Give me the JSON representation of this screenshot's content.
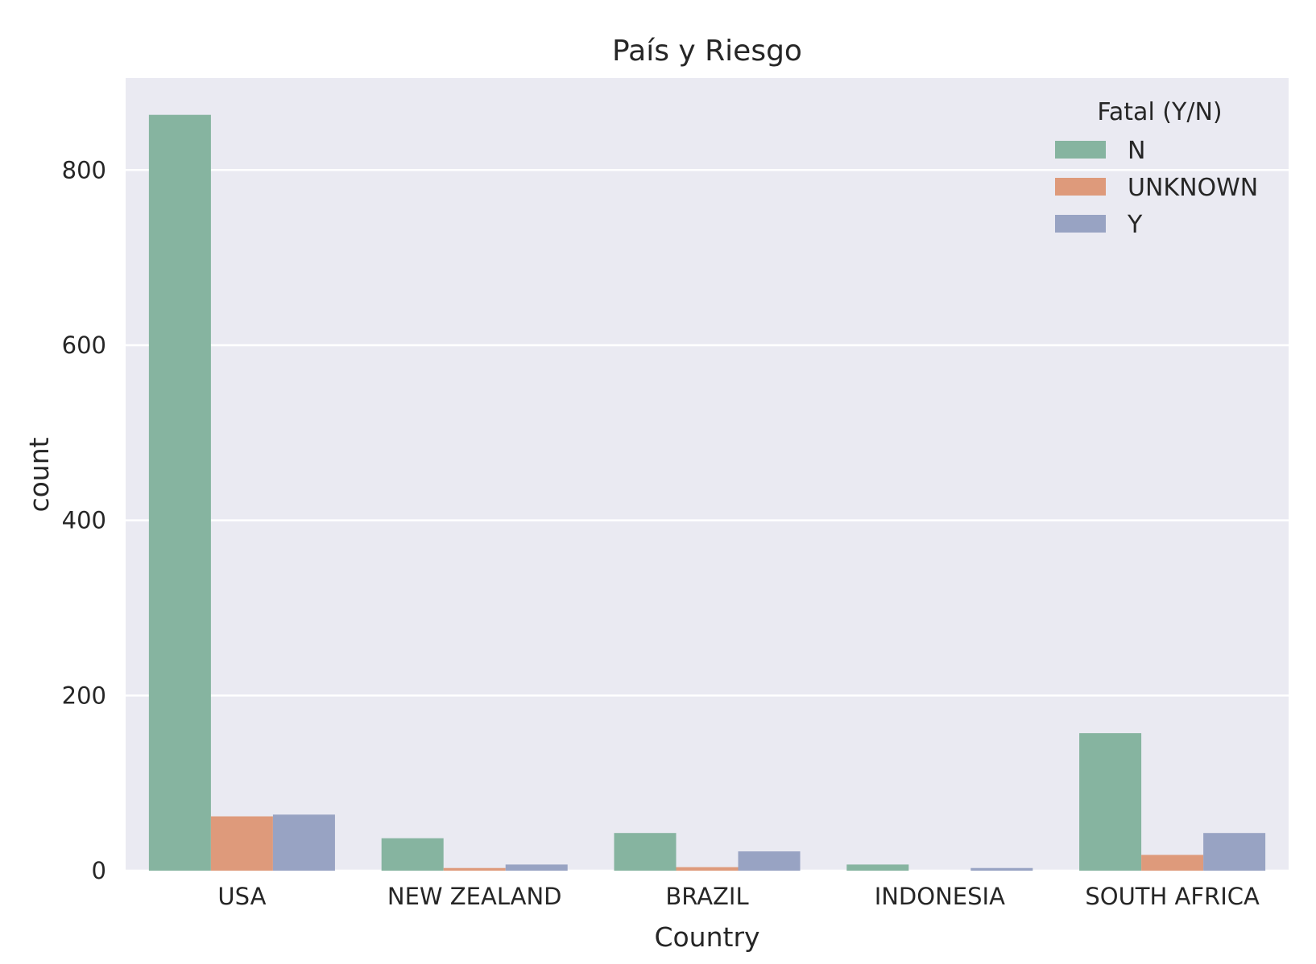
{
  "chart_data": {
    "type": "bar",
    "title": "País y Riesgo",
    "xlabel": "Country",
    "ylabel": "count",
    "categories": [
      "USA",
      "NEW ZEALAND",
      "BRAZIL",
      "INDONESIA",
      "SOUTH AFRICA"
    ],
    "series": [
      {
        "name": "N",
        "color": "#86b4a0",
        "values": [
          863,
          37,
          43,
          7,
          157
        ]
      },
      {
        "name": "UNKNOWN",
        "color": "#de9a7b",
        "values": [
          62,
          3,
          4,
          0,
          18
        ]
      },
      {
        "name": "Y",
        "color": "#98a3c3",
        "values": [
          64,
          7,
          22,
          3,
          43
        ]
      }
    ],
    "ylim": [
      0,
      905
    ],
    "yticks": [
      0,
      200,
      400,
      600,
      800
    ],
    "grid": true,
    "legend": {
      "title": "Fatal (Y/N)",
      "placement": "top-right"
    },
    "colors": {
      "background": "#eaeaf2",
      "grid": "#ffffff",
      "text": "#262626"
    }
  }
}
